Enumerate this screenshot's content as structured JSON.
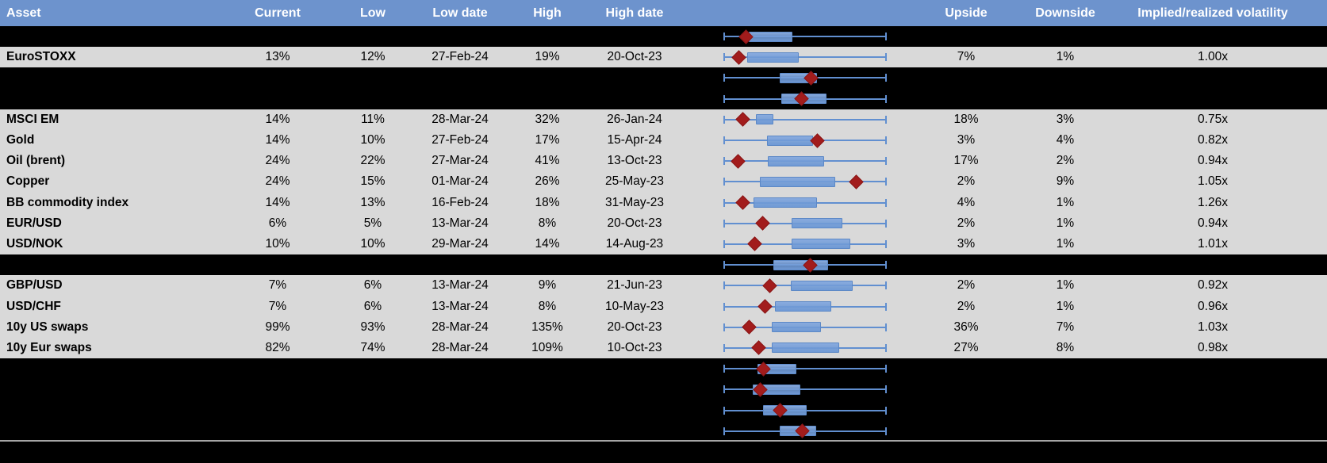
{
  "columns": [
    {
      "key": "label",
      "label": "Asset"
    },
    {
      "key": "current",
      "label": "Current"
    },
    {
      "key": "low",
      "label": "Low"
    },
    {
      "key": "low_date",
      "label": "Low date"
    },
    {
      "key": "high",
      "label": "High"
    },
    {
      "key": "high_date",
      "label": "High date"
    },
    {
      "key": "upside",
      "label": "Upside"
    },
    {
      "key": "downside",
      "label": "Downside"
    },
    {
      "key": "vol",
      "label": "Implied/realized volatility"
    }
  ],
  "colors": {
    "header_bg": "#6d93cd",
    "row_gray": "#d9d9d9",
    "row_black": "#000000",
    "box_fill": "#7aa1d9",
    "box_border": "#5c88c6",
    "whisker": "#618fd0",
    "marker_fill": "#a21c1c",
    "marker_border": "#8a1616",
    "divider": "#a6a6a6",
    "header_text": "#ffffff"
  },
  "chart_note": "box positions are percent of each row's low-high whisker range (0 = low end, 100 = high end)",
  "rows": [
    {
      "bg": "black",
      "box": {
        "lo": 15.2,
        "hi": 41.2,
        "marker": 13.7
      }
    },
    {
      "bg": "gray",
      "label": "EuroSTOXX",
      "current": "13%",
      "low": "12%",
      "low_date": "27-Feb-24",
      "high": "19%",
      "high_date": "20-Oct-23",
      "upside": "7%",
      "downside": "1%",
      "vol": "1.00x",
      "box": {
        "lo": 14.1,
        "hi": 45.1,
        "marker": 9.3
      }
    },
    {
      "bg": "black",
      "box": {
        "lo": 34.3,
        "hi": 56.5,
        "marker": 53.8
      }
    },
    {
      "bg": "black",
      "box": {
        "lo": 35.3,
        "hi": 62.3,
        "marker": 47.9
      }
    },
    {
      "bg": "gray",
      "label": "MSCI EM",
      "current": "14%",
      "low": "11%",
      "low_date": "28-Mar-24",
      "high": "32%",
      "high_date": "26-Jan-24",
      "upside": "18%",
      "downside": "3%",
      "vol": "0.75x",
      "box": {
        "lo": 19.8,
        "hi": 29.6,
        "marker": 11.6
      }
    },
    {
      "bg": "gray",
      "label": "Gold",
      "current": "14%",
      "low": "10%",
      "low_date": "27-Feb-24",
      "high": "17%",
      "high_date": "15-Apr-24",
      "upside": "3%",
      "downside": "4%",
      "vol": "0.82x",
      "box": {
        "lo": 26.3,
        "hi": 53.9,
        "marker": 57.7
      }
    },
    {
      "bg": "gray",
      "label": "Oil (brent)",
      "current": "24%",
      "low": "22%",
      "low_date": "27-Mar-24",
      "high": "41%",
      "high_date": "13-Oct-23",
      "upside": "17%",
      "downside": "2%",
      "vol": "0.94x",
      "box": {
        "lo": 27.0,
        "hi": 60.6,
        "marker": 8.7
      }
    },
    {
      "bg": "gray",
      "label": "Copper",
      "current": "24%",
      "low": "15%",
      "low_date": "01-Mar-24",
      "high": "26%",
      "high_date": "25-May-23",
      "upside": "2%",
      "downside": "9%",
      "vol": "1.05x",
      "box": {
        "lo": 22.1,
        "hi": 67.6,
        "marker": 81.9
      }
    },
    {
      "bg": "gray",
      "label": "BB commodity index",
      "current": "14%",
      "low": "13%",
      "low_date": "16-Feb-24",
      "high": "18%",
      "high_date": "31-May-23",
      "upside": "4%",
      "downside": "1%",
      "vol": "1.26x",
      "box": {
        "lo": 18.1,
        "hi": 56.4,
        "marker": 11.6
      }
    },
    {
      "bg": "gray",
      "label": "EUR/USD",
      "current": "6%",
      "low": "5%",
      "low_date": "13-Mar-24",
      "high": "8%",
      "high_date": "20-Oct-23",
      "upside": "2%",
      "downside": "1%",
      "vol": "0.94x",
      "box": {
        "lo": 41.8,
        "hi": 72.1,
        "marker": 24.2
      }
    },
    {
      "bg": "gray",
      "label": "USD/NOK",
      "current": "10%",
      "low": "10%",
      "low_date": "29-Mar-24",
      "high": "14%",
      "high_date": "14-Aug-23",
      "upside": "3%",
      "downside": "1%",
      "vol": "1.01x",
      "box": {
        "lo": 41.8,
        "hi": 77.0,
        "marker": 19.3
      }
    },
    {
      "bg": "black",
      "box": {
        "lo": 30.4,
        "hi": 63.2,
        "marker": 53.3
      }
    },
    {
      "bg": "gray",
      "label": "GBP/USD",
      "current": "7%",
      "low": "6%",
      "low_date": "13-Mar-24",
      "high": "9%",
      "high_date": "21-Jun-23",
      "upside": "2%",
      "downside": "1%",
      "vol": "0.92x",
      "box": {
        "lo": 41.0,
        "hi": 78.6,
        "marker": 28.3
      }
    },
    {
      "bg": "gray",
      "label": "USD/CHF",
      "current": "7%",
      "low": "6%",
      "low_date": "13-Mar-24",
      "high": "8%",
      "high_date": "10-May-23",
      "upside": "2%",
      "downside": "1%",
      "vol": "0.96x",
      "box": {
        "lo": 31.2,
        "hi": 65.2,
        "marker": 25.5
      }
    },
    {
      "bg": "gray",
      "label": "10y US swaps",
      "current": "99%",
      "low": "93%",
      "low_date": "28-Mar-24",
      "high": "135%",
      "high_date": "20-Oct-23",
      "upside": "36%",
      "downside": "7%",
      "vol": "1.03x",
      "box": {
        "lo": 29.6,
        "hi": 59.0,
        "marker": 15.7
      }
    },
    {
      "bg": "gray",
      "label": "10y Eur swaps",
      "current": "82%",
      "low": "74%",
      "low_date": "28-Mar-24",
      "high": "109%",
      "high_date": "10-Oct-23",
      "upside": "27%",
      "downside": "8%",
      "vol": "0.98x",
      "box": {
        "lo": 29.3,
        "hi": 70.0,
        "marker": 21.7
      }
    },
    {
      "bg": "black",
      "box": {
        "lo": 20.6,
        "hi": 43.5,
        "marker": 24.4
      }
    },
    {
      "bg": "black",
      "box": {
        "lo": 17.8,
        "hi": 46.2,
        "marker": 22.7
      }
    },
    {
      "bg": "black",
      "box": {
        "lo": 23.9,
        "hi": 50.0,
        "marker": 34.8
      }
    },
    {
      "bg": "black",
      "box": {
        "lo": 34.5,
        "hi": 55.7,
        "marker": 48.4
      }
    },
    {
      "bg": "black"
    }
  ]
}
